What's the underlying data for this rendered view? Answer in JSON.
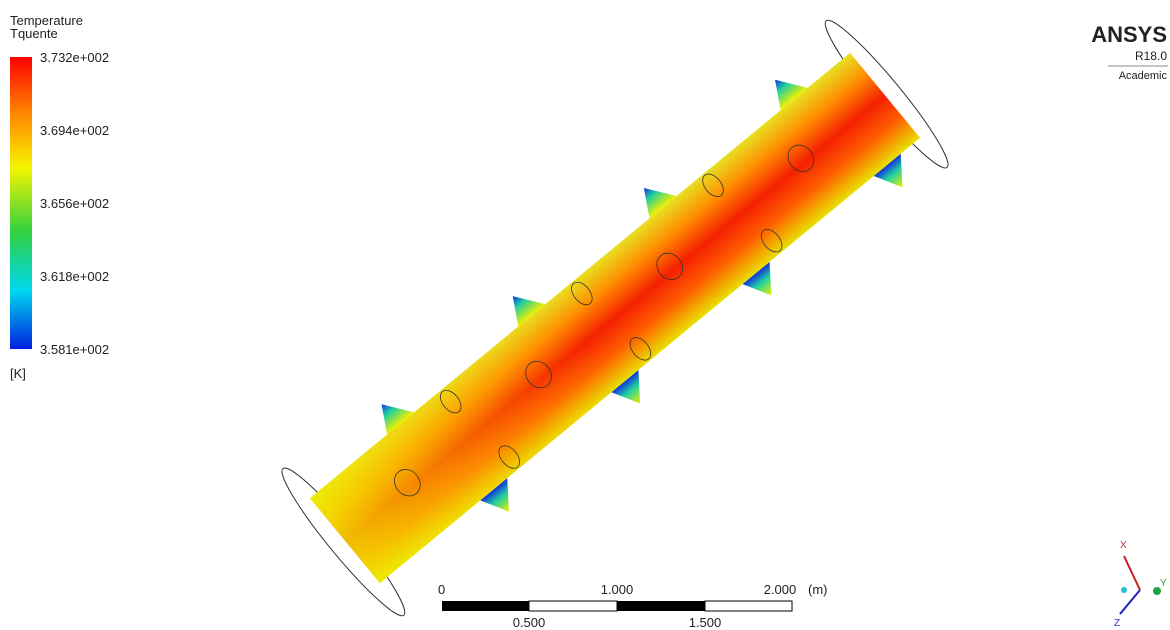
{
  "legend": {
    "title": "Temperature",
    "variable": "Tquente",
    "labels": [
      "3.732e+002",
      "3.694e+002",
      "3.656e+002",
      "3.618e+002",
      "3.581e+002"
    ],
    "unit": "[K]"
  },
  "logo": {
    "name": "ANSYS",
    "version": "R18.0",
    "edition": "Academic"
  },
  "scale_bar": {
    "top_labels": [
      "0",
      "1.000",
      "2.000"
    ],
    "unit": "(m)",
    "bottom_labels": [
      "0.500",
      "1.500"
    ]
  },
  "triad": {
    "x": "X",
    "y": "Y",
    "z": "Z"
  }
}
